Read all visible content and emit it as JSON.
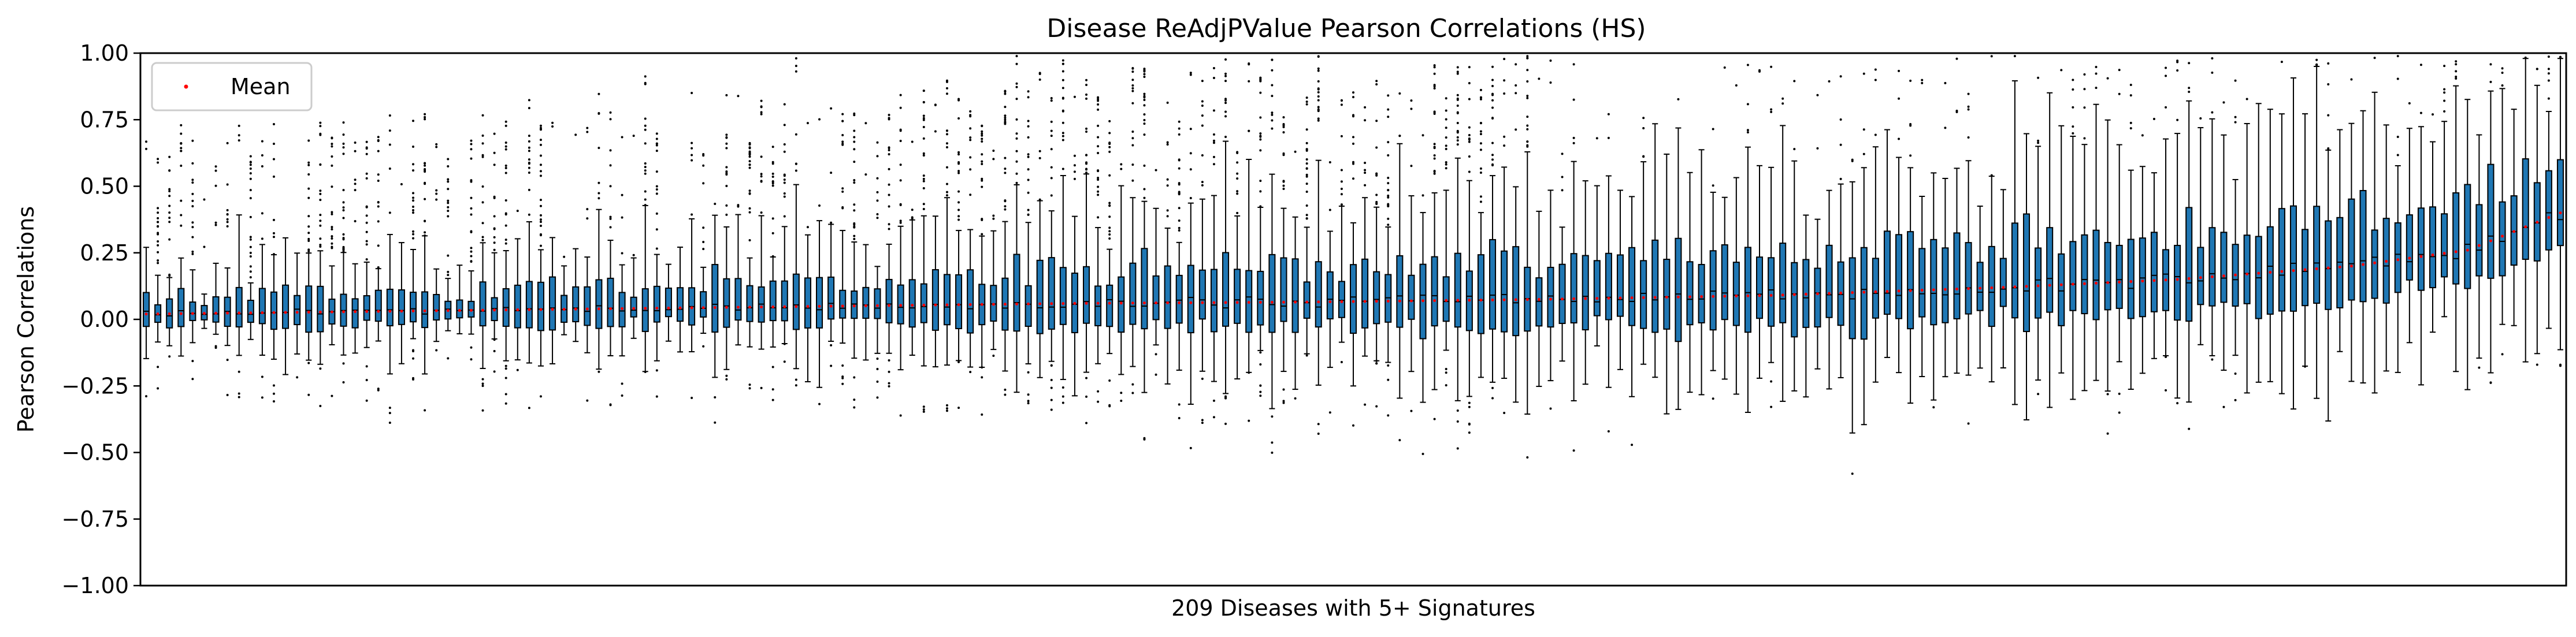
{
  "chart_data": {
    "type": "box",
    "title": "Disease ReAdjPValue Pearson Correlations (HS)",
    "xlabel": "209 Diseases with 5+ Signatures",
    "ylabel": "Pearson Correlations",
    "ylim": [
      -1.0,
      1.0
    ],
    "yticks": [
      "−1.00",
      "−0.75",
      "−0.50",
      "−0.25",
      "0.00",
      "0.25",
      "0.50",
      "0.75",
      "1.00"
    ],
    "ytick_values": [
      -1.0,
      -0.75,
      -0.5,
      -0.25,
      0.0,
      0.25,
      0.5,
      0.75,
      1.0
    ],
    "n_boxes": 209,
    "box_color": "#1f77b4",
    "mean_color": "#ff0000",
    "flier_color": "#000000",
    "grid": false,
    "legend": {
      "placement": "top-left",
      "entries": [
        "Mean"
      ]
    },
    "mean_trend_approx": [
      [
        0,
        0.02
      ],
      [
        20,
        0.03
      ],
      [
        40,
        0.04
      ],
      [
        60,
        0.05
      ],
      [
        80,
        0.06
      ],
      [
        100,
        0.065
      ],
      [
        120,
        0.075
      ],
      [
        140,
        0.09
      ],
      [
        160,
        0.12
      ],
      [
        175,
        0.15
      ],
      [
        190,
        0.2
      ],
      [
        200,
        0.26
      ],
      [
        208,
        0.4
      ]
    ]
  }
}
